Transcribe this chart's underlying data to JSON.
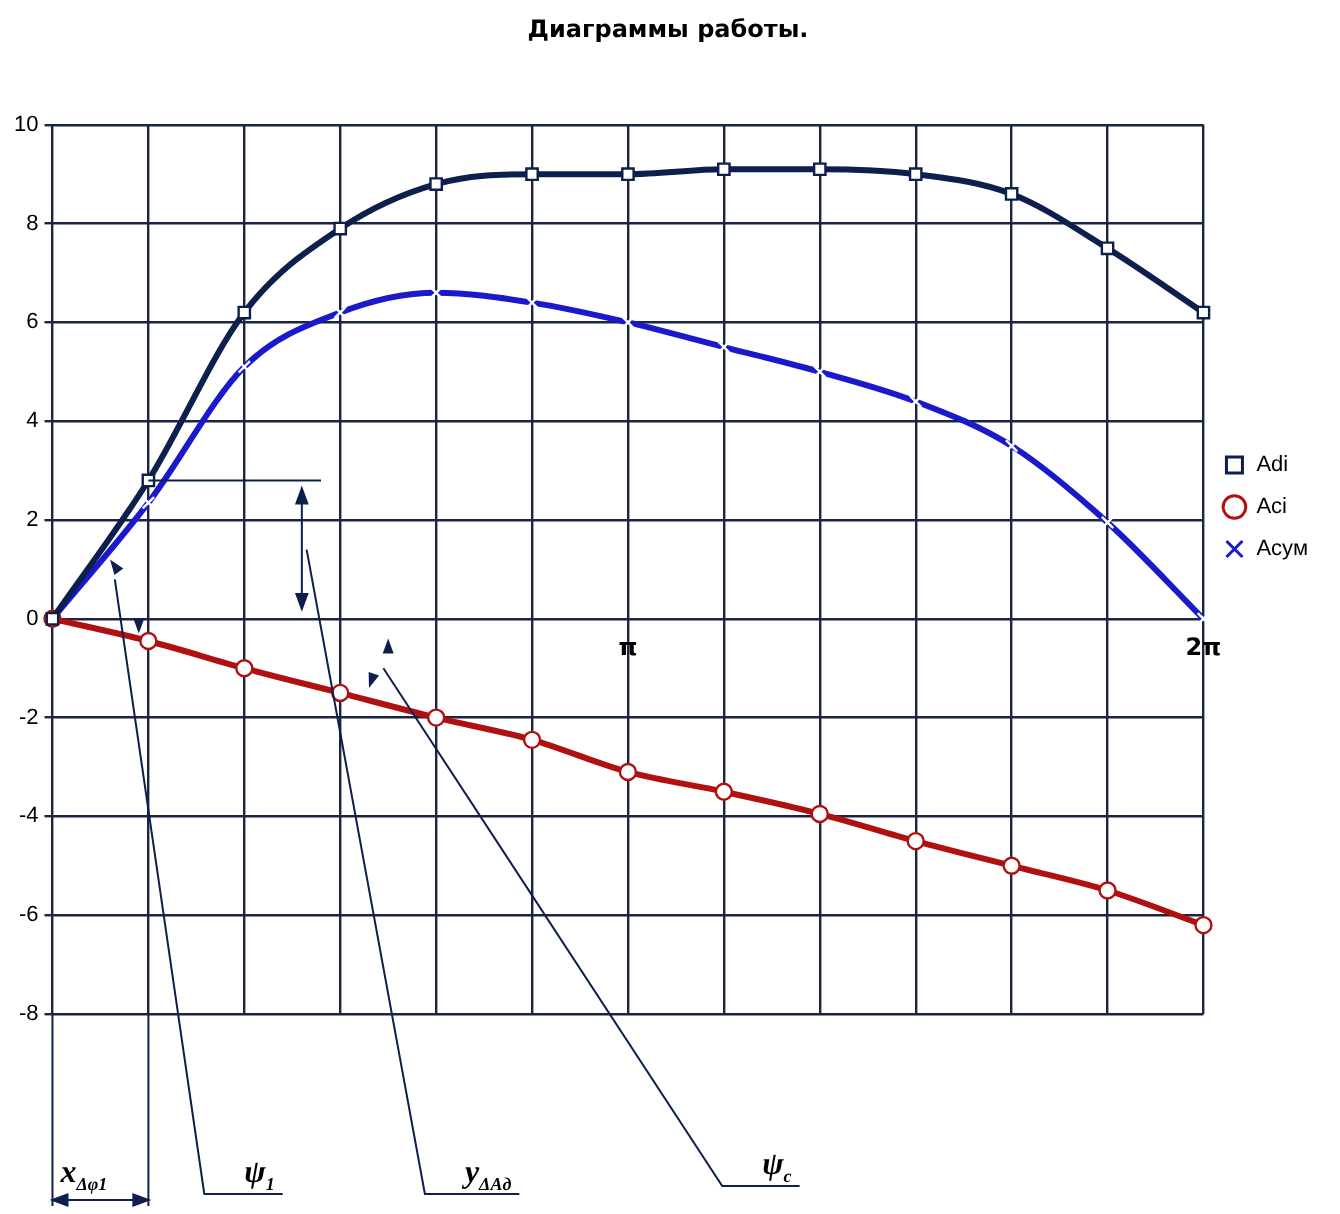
{
  "chart_data": {
    "type": "line",
    "title": "Диаграммы работы.",
    "categories": [
      null,
      null,
      null,
      null,
      null,
      null,
      "π",
      null,
      null,
      null,
      null,
      null,
      "2π"
    ],
    "series": [
      {
        "name": "Adi",
        "color": "#0d1f4d",
        "marker": "square",
        "values": [
          0,
          2.8,
          6.2,
          7.9,
          8.8,
          9.0,
          9.0,
          9.1,
          9.1,
          9.0,
          8.6,
          7.5,
          6.2
        ]
      },
      {
        "name": "Aci",
        "color": "#b01010",
        "marker": "circle",
        "values": [
          0,
          -0.45,
          -1.0,
          -1.5,
          -2.0,
          -2.45,
          -3.1,
          -3.5,
          -3.95,
          -4.5,
          -5.0,
          -5.5,
          -6.2
        ]
      },
      {
        "name": "Acум",
        "color": "#1a1acc",
        "marker": "cross",
        "values": [
          0,
          2.35,
          5.1,
          6.2,
          6.6,
          6.4,
          6.0,
          5.5,
          5.0,
          4.4,
          3.5,
          1.95,
          0
        ]
      }
    ],
    "ylim": [
      -8,
      10
    ],
    "yticks": [
      -8,
      -6,
      -4,
      -2,
      0,
      2,
      4,
      6,
      8,
      10
    ],
    "grid": true,
    "legend": "right",
    "line_style": "solid",
    "annotations": [
      "x$_{Δφ1}$",
      "ψ$_{1}$",
      "y$_{ΔAд}$",
      "ψ$_{c}$"
    ]
  }
}
